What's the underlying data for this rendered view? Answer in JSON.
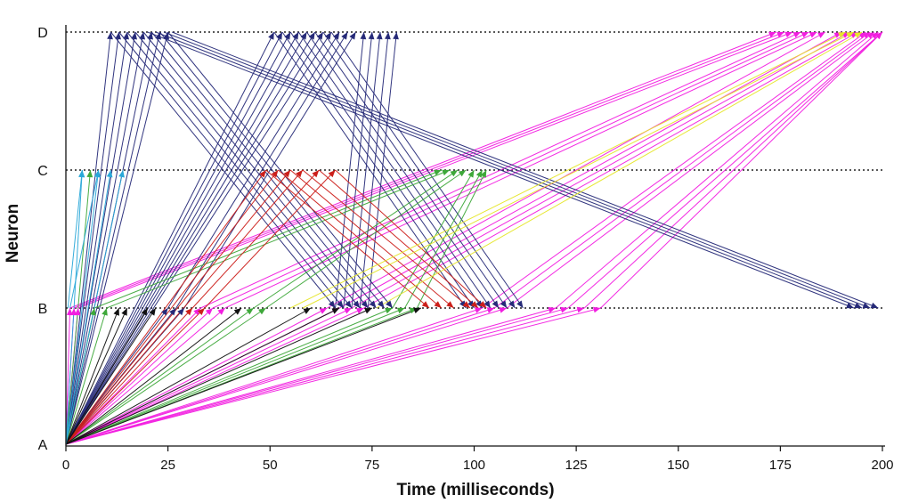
{
  "chart_data": {
    "type": "line",
    "title": "",
    "xlabel": "Time (milliseconds)",
    "ylabel": "Neuron",
    "xlim": [
      0,
      200
    ],
    "x_ticks": [
      0,
      25,
      50,
      75,
      100,
      125,
      150,
      175,
      200
    ],
    "neurons": [
      "A",
      "B",
      "C",
      "D"
    ],
    "grid": "dotted lines at B, C and D",
    "colors": {
      "navy": "#262a78",
      "magenta": "#f21ee0",
      "green": "#3ea83a",
      "red": "#cc1f1a",
      "black": "#111111",
      "cyan": "#2aa8d8",
      "yellow": "#e6e62a",
      "dotted": "#222222"
    },
    "series": [
      {
        "name": "magenta",
        "color": "magenta",
        "connections": [
          {
            "from": "A",
            "t0": 0,
            "to": "B",
            "t1": 1
          },
          {
            "from": "A",
            "t0": 0,
            "to": "B",
            "t1": 2
          },
          {
            "from": "A",
            "t0": 0,
            "to": "B",
            "t1": 3
          },
          {
            "from": "A",
            "t0": 0,
            "to": "B",
            "t1": 33
          },
          {
            "from": "A",
            "t0": 0,
            "to": "B",
            "t1": 36
          },
          {
            "from": "A",
            "t0": 0,
            "to": "B",
            "t1": 39
          },
          {
            "from": "A",
            "t0": 0,
            "to": "B",
            "t1": 64
          },
          {
            "from": "A",
            "t0": 0,
            "to": "B",
            "t1": 67
          },
          {
            "from": "A",
            "t0": 0,
            "to": "B",
            "t1": 70
          },
          {
            "from": "A",
            "t0": 0,
            "to": "B",
            "t1": 73
          },
          {
            "from": "A",
            "t0": 0,
            "to": "B",
            "t1": 102
          },
          {
            "from": "A",
            "t0": 0,
            "to": "B",
            "t1": 105
          },
          {
            "from": "A",
            "t0": 0,
            "to": "B",
            "t1": 108
          },
          {
            "from": "A",
            "t0": 0,
            "to": "B",
            "t1": 120
          },
          {
            "from": "A",
            "t0": 0,
            "to": "B",
            "t1": 123
          },
          {
            "from": "A",
            "t0": 0,
            "to": "B",
            "t1": 127
          },
          {
            "from": "A",
            "t0": 0,
            "to": "B",
            "t1": 131
          },
          {
            "from": "B",
            "t0": 1,
            "to": "D",
            "t1": 174
          },
          {
            "from": "B",
            "t0": 2,
            "to": "D",
            "t1": 176
          },
          {
            "from": "B",
            "t0": 3,
            "to": "D",
            "t1": 178
          },
          {
            "from": "B",
            "t0": 33,
            "to": "D",
            "t1": 180
          },
          {
            "from": "B",
            "t0": 36,
            "to": "D",
            "t1": 182
          },
          {
            "from": "B",
            "t0": 39,
            "to": "D",
            "t1": 184
          },
          {
            "from": "B",
            "t0": 64,
            "to": "D",
            "t1": 186
          },
          {
            "from": "B",
            "t0": 67,
            "to": "D",
            "t1": 190
          },
          {
            "from": "B",
            "t0": 70,
            "to": "D",
            "t1": 192
          },
          {
            "from": "B",
            "t0": 73,
            "to": "D",
            "t1": 194
          },
          {
            "from": "B",
            "t0": 102,
            "to": "D",
            "t1": 196
          },
          {
            "from": "B",
            "t0": 105,
            "to": "D",
            "t1": 197
          },
          {
            "from": "B",
            "t0": 108,
            "to": "D",
            "t1": 198
          },
          {
            "from": "B",
            "t0": 120,
            "to": "D",
            "t1": 199
          },
          {
            "from": "B",
            "t0": 123,
            "to": "D",
            "t1": 200
          },
          {
            "from": "B",
            "t0": 127,
            "to": "D",
            "t1": 200
          },
          {
            "from": "B",
            "t0": 131,
            "to": "D",
            "t1": 200
          }
        ]
      },
      {
        "name": "navy",
        "color": "navy",
        "connections": [
          {
            "from": "A",
            "t0": 0,
            "to": "D",
            "t1": 11
          },
          {
            "from": "A",
            "t0": 0,
            "to": "D",
            "t1": 13
          },
          {
            "from": "A",
            "t0": 0,
            "to": "D",
            "t1": 15
          },
          {
            "from": "A",
            "t0": 0,
            "to": "D",
            "t1": 17
          },
          {
            "from": "A",
            "t0": 0,
            "to": "D",
            "t1": 19
          },
          {
            "from": "A",
            "t0": 0,
            "to": "D",
            "t1": 21
          },
          {
            "from": "A",
            "t0": 0,
            "to": "D",
            "t1": 23
          },
          {
            "from": "A",
            "t0": 0,
            "to": "D",
            "t1": 25
          },
          {
            "from": "A",
            "t0": 0,
            "to": "D",
            "t1": 51
          },
          {
            "from": "A",
            "t0": 0,
            "to": "D",
            "t1": 53
          },
          {
            "from": "A",
            "t0": 0,
            "to": "D",
            "t1": 55
          },
          {
            "from": "A",
            "t0": 0,
            "to": "D",
            "t1": 57
          },
          {
            "from": "A",
            "t0": 0,
            "to": "D",
            "t1": 59
          },
          {
            "from": "A",
            "t0": 0,
            "to": "D",
            "t1": 61
          },
          {
            "from": "A",
            "t0": 0,
            "to": "D",
            "t1": 63
          },
          {
            "from": "A",
            "t0": 0,
            "to": "D",
            "t1": 65
          },
          {
            "from": "A",
            "t0": 0,
            "to": "B",
            "t1": 25
          },
          {
            "from": "A",
            "t0": 0,
            "to": "B",
            "t1": 27
          },
          {
            "from": "A",
            "t0": 0,
            "to": "B",
            "t1": 29
          },
          {
            "from": "D",
            "t0": 11,
            "to": "B",
            "t1": 66
          },
          {
            "from": "D",
            "t0": 13,
            "to": "B",
            "t1": 68
          },
          {
            "from": "D",
            "t0": 15,
            "to": "B",
            "t1": 70
          },
          {
            "from": "D",
            "t0": 17,
            "to": "B",
            "t1": 72
          },
          {
            "from": "D",
            "t0": 19,
            "to": "B",
            "t1": 74
          },
          {
            "from": "D",
            "t0": 21,
            "to": "B",
            "t1": 76
          },
          {
            "from": "D",
            "t0": 23,
            "to": "B",
            "t1": 78
          },
          {
            "from": "D",
            "t0": 25,
            "to": "B",
            "t1": 80
          },
          {
            "from": "D",
            "t0": 20,
            "to": "B",
            "t1": 193
          },
          {
            "from": "D",
            "t0": 22,
            "to": "B",
            "t1": 195
          },
          {
            "from": "D",
            "t0": 24,
            "to": "B",
            "t1": 197
          },
          {
            "from": "D",
            "t0": 26,
            "to": "B",
            "t1": 199
          },
          {
            "from": "D",
            "t0": 51,
            "to": "B",
            "t1": 98
          },
          {
            "from": "D",
            "t0": 53,
            "to": "B",
            "t1": 100
          },
          {
            "from": "D",
            "t0": 55,
            "to": "B",
            "t1": 102
          },
          {
            "from": "D",
            "t0": 57,
            "to": "B",
            "t1": 104
          },
          {
            "from": "D",
            "t0": 59,
            "to": "B",
            "t1": 106
          },
          {
            "from": "D",
            "t0": 61,
            "to": "B",
            "t1": 108
          },
          {
            "from": "D",
            "t0": 63,
            "to": "B",
            "t1": 110
          },
          {
            "from": "D",
            "t0": 65,
            "to": "B",
            "t1": 112
          },
          {
            "from": "B",
            "t0": 25,
            "to": "D",
            "t1": 67
          },
          {
            "from": "B",
            "t0": 27,
            "to": "D",
            "t1": 69
          },
          {
            "from": "B",
            "t0": 29,
            "to": "D",
            "t1": 71
          },
          {
            "from": "B",
            "t0": 66,
            "to": "D",
            "t1": 73
          },
          {
            "from": "B",
            "t0": 68,
            "to": "D",
            "t1": 75
          },
          {
            "from": "B",
            "t0": 70,
            "to": "D",
            "t1": 77
          },
          {
            "from": "B",
            "t0": 72,
            "to": "D",
            "t1": 79
          },
          {
            "from": "B",
            "t0": 74,
            "to": "D",
            "t1": 81
          }
        ]
      },
      {
        "name": "green",
        "color": "green",
        "connections": [
          {
            "from": "A",
            "t0": 0,
            "to": "B",
            "t1": 7
          },
          {
            "from": "A",
            "t0": 0,
            "to": "B",
            "t1": 10
          },
          {
            "from": "A",
            "t0": 0,
            "to": "B",
            "t1": 46
          },
          {
            "from": "A",
            "t0": 0,
            "to": "B",
            "t1": 49
          },
          {
            "from": "A",
            "t0": 0,
            "to": "B",
            "t1": 80
          },
          {
            "from": "A",
            "t0": 0,
            "to": "B",
            "t1": 83
          },
          {
            "from": "A",
            "t0": 0,
            "to": "B",
            "t1": 86
          },
          {
            "from": "A",
            "t0": 0,
            "to": "C",
            "t1": 6
          },
          {
            "from": "B",
            "t0": 7,
            "to": "C",
            "t1": 92
          },
          {
            "from": "B",
            "t0": 10,
            "to": "C",
            "t1": 94
          },
          {
            "from": "B",
            "t0": 46,
            "to": "C",
            "t1": 96
          },
          {
            "from": "B",
            "t0": 49,
            "to": "C",
            "t1": 98
          },
          {
            "from": "B",
            "t0": 80,
            "to": "C",
            "t1": 100
          },
          {
            "from": "B",
            "t0": 83,
            "to": "C",
            "t1": 102
          },
          {
            "from": "B",
            "t0": 86,
            "to": "C",
            "t1": 103
          }
        ]
      },
      {
        "name": "red",
        "color": "red",
        "connections": [
          {
            "from": "A",
            "t0": 0,
            "to": "B",
            "t1": 31
          },
          {
            "from": "A",
            "t0": 0,
            "to": "B",
            "t1": 34
          },
          {
            "from": "A",
            "t0": 0,
            "to": "C",
            "t1": 49
          },
          {
            "from": "A",
            "t0": 0,
            "to": "C",
            "t1": 52
          },
          {
            "from": "A",
            "t0": 0,
            "to": "C",
            "t1": 55
          },
          {
            "from": "A",
            "t0": 0,
            "to": "C",
            "t1": 58
          },
          {
            "from": "C",
            "t0": 49,
            "to": "B",
            "t1": 89
          },
          {
            "from": "C",
            "t0": 52,
            "to": "B",
            "t1": 92
          },
          {
            "from": "C",
            "t0": 55,
            "to": "B",
            "t1": 95
          },
          {
            "from": "C",
            "t0": 58,
            "to": "B",
            "t1": 99
          },
          {
            "from": "C",
            "t0": 62,
            "to": "B",
            "t1": 101
          },
          {
            "from": "C",
            "t0": 66,
            "to": "B",
            "t1": 103
          },
          {
            "from": "B",
            "t0": 31,
            "to": "C",
            "t1": 62
          },
          {
            "from": "B",
            "t0": 34,
            "to": "C",
            "t1": 66
          }
        ]
      },
      {
        "name": "black",
        "color": "black",
        "connections": [
          {
            "from": "A",
            "t0": 0,
            "to": "B",
            "t1": 13
          },
          {
            "from": "A",
            "t0": 0,
            "to": "B",
            "t1": 15
          },
          {
            "from": "A",
            "t0": 0,
            "to": "B",
            "t1": 20
          },
          {
            "from": "A",
            "t0": 0,
            "to": "B",
            "t1": 22
          },
          {
            "from": "A",
            "t0": 0,
            "to": "B",
            "t1": 43
          },
          {
            "from": "A",
            "t0": 0,
            "to": "B",
            "t1": 60
          },
          {
            "from": "A",
            "t0": 0,
            "to": "B",
            "t1": 67
          },
          {
            "from": "A",
            "t0": 0,
            "to": "B",
            "t1": 75
          },
          {
            "from": "A",
            "t0": 0,
            "to": "B",
            "t1": 87
          }
        ]
      },
      {
        "name": "cyan",
        "color": "cyan",
        "connections": [
          {
            "from": "A",
            "t0": 0,
            "to": "C",
            "t1": 4
          },
          {
            "from": "A",
            "t0": 0,
            "to": "C",
            "t1": 8
          },
          {
            "from": "A",
            "t0": 0,
            "to": "C",
            "t1": 11
          },
          {
            "from": "A",
            "t0": 0,
            "to": "C",
            "t1": 14
          },
          {
            "from": "B",
            "t0": 0.5,
            "to": "C",
            "t1": 4
          },
          {
            "from": "B",
            "t0": 1,
            "to": "C",
            "t1": 8
          }
        ]
      },
      {
        "name": "yellow",
        "color": "yellow",
        "connections": [
          {
            "from": "B",
            "t0": 55,
            "to": "D",
            "t1": 191
          },
          {
            "from": "B",
            "t0": 58,
            "to": "D",
            "t1": 193
          },
          {
            "from": "B",
            "t0": 76,
            "to": "D",
            "t1": 195
          }
        ]
      }
    ]
  }
}
